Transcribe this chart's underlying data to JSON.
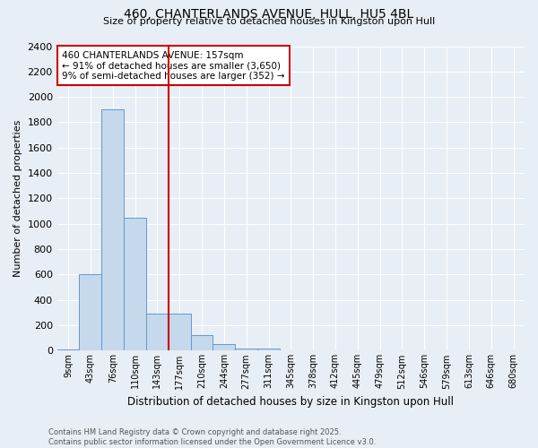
{
  "title_line1": "460, CHANTERLANDS AVENUE, HULL, HU5 4BL",
  "title_line2": "Size of property relative to detached houses in Kingston upon Hull",
  "xlabel": "Distribution of detached houses by size in Kingston upon Hull",
  "ylabel": "Number of detached properties",
  "categories": [
    "9sqm",
    "43sqm",
    "76sqm",
    "110sqm",
    "143sqm",
    "177sqm",
    "210sqm",
    "244sqm",
    "277sqm",
    "311sqm",
    "345sqm",
    "378sqm",
    "412sqm",
    "445sqm",
    "479sqm",
    "512sqm",
    "546sqm",
    "579sqm",
    "613sqm",
    "646sqm",
    "680sqm"
  ],
  "values": [
    10,
    600,
    1900,
    1050,
    290,
    290,
    120,
    50,
    15,
    15,
    5,
    5,
    0,
    0,
    0,
    0,
    0,
    0,
    0,
    0,
    0
  ],
  "bar_color": "#c5d8ec",
  "bar_edge_color": "#6699cc",
  "red_line_color": "#cc0000",
  "annotation_text": "460 CHANTERLANDS AVENUE: 157sqm\n← 91% of detached houses are smaller (3,650)\n9% of semi-detached houses are larger (352) →",
  "annotation_box_color": "#ffffff",
  "annotation_box_edge": "#cc0000",
  "ylim": [
    0,
    2400
  ],
  "yticks": [
    0,
    200,
    400,
    600,
    800,
    1000,
    1200,
    1400,
    1600,
    1800,
    2000,
    2200,
    2400
  ],
  "background_color": "#e8eef5",
  "grid_color": "#ffffff",
  "footer_line1": "Contains HM Land Registry data © Crown copyright and database right 2025.",
  "footer_line2": "Contains public sector information licensed under the Open Government Licence v3.0."
}
